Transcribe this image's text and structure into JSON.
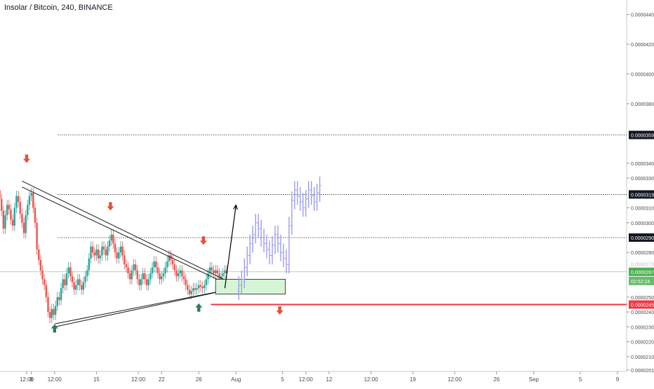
{
  "chart_data": {
    "type": "candlestick",
    "title": "Insolar / Bitcoin, 240, BINANCE",
    "colors": {
      "up": "#26a69a",
      "down": "#ef5350",
      "projection": "#9c9cf0",
      "zone_fill": "#d6f5d6",
      "zone_border": "#1b1b1b",
      "support_line": "#f23645",
      "current_price": "#4caf50",
      "arrow_down": "#e0533d",
      "arrow_up": "#2e7d5b",
      "label_dark": "#131722"
    },
    "ylim": [
      2e-06,
      4.45e-06
    ],
    "y_ticks": [
      "0.0000440",
      "0.0000420",
      "0.0000400",
      "0.0000380",
      "0.0000340",
      "0.0000330",
      "0.0000310",
      "0.0000300",
      "0.0000280",
      "0.0000250",
      "0.0000240",
      "0.0000230",
      "0.0000220",
      "0.0000210",
      "0.0000201"
    ],
    "y_tick_values": [
      4.4e-06,
      4.2e-06,
      4e-06,
      3.8e-06,
      3.4e-06,
      3.3e-06,
      3.1e-06,
      3e-06,
      2.8e-06,
      2.5e-06,
      2.4e-06,
      2.3e-06,
      2.2e-06,
      2.1e-06,
      2.01e-06
    ],
    "x_ticks": [
      "12:00",
      "8",
      "12:00",
      "15",
      "12:00",
      "22",
      "26",
      "Aug",
      "5",
      "12:00",
      "12",
      "12:00",
      "19",
      "12:00",
      "26",
      "Sep",
      "5",
      "9"
    ],
    "x_tick_days": [
      7.5,
      8,
      10.5,
      15,
      19.5,
      22,
      26,
      30,
      35,
      37.5,
      40,
      44.5,
      49,
      53.5,
      58,
      62,
      67,
      71
    ],
    "price_levels": [
      {
        "label": "0.0000359",
        "value": 3.59e-06,
        "style": "dotted"
      },
      {
        "label": "0.0000319",
        "value": 3.19e-06,
        "style": "dotted"
      },
      {
        "label": "0.0000290",
        "value": 2.9e-06,
        "style": "dotted"
      }
    ],
    "current_price": {
      "label": "0.0000267",
      "value": 2.67e-06,
      "countdown": "02:52:24"
    },
    "support": {
      "label": "0.0000245",
      "value": 2.45e-06
    },
    "partial_tick": "0.0000270",
    "candles_days": [
      4.0,
      4.2,
      4.4,
      4.6,
      4.8,
      5.0,
      5.2,
      5.4,
      5.6,
      5.8,
      6.0,
      6.2,
      6.4,
      6.6,
      6.8,
      7.0,
      7.2,
      7.4,
      7.6,
      7.8,
      8.0,
      8.2,
      8.4,
      8.6,
      8.8,
      9.0,
      9.2,
      9.4,
      9.6,
      9.8,
      10.0,
      10.2,
      10.4,
      10.6,
      10.8,
      11.0,
      11.2,
      11.4,
      11.6,
      11.8,
      12.0,
      12.2,
      12.4,
      12.6,
      12.8,
      13.0,
      13.2,
      13.4,
      13.6,
      13.8,
      14.0,
      14.2,
      14.4,
      14.6,
      14.8,
      15.0,
      15.2,
      15.4,
      15.6,
      15.8,
      16.0,
      16.2,
      16.4,
      16.6,
      16.8,
      17.0,
      17.2,
      17.4,
      17.6,
      17.8,
      18.0,
      18.2,
      18.4,
      18.6,
      18.8,
      19.0,
      19.2,
      19.4,
      19.6,
      19.8,
      20.0,
      20.2,
      20.4,
      20.6,
      20.8,
      21.0,
      21.2,
      21.4,
      21.6,
      21.8,
      22.0,
      22.2,
      22.4,
      22.6,
      22.8,
      23.0,
      23.2,
      23.4,
      23.6,
      23.8,
      24.0,
      24.2,
      24.4,
      24.6,
      24.8,
      25.0,
      25.2,
      25.4,
      25.6,
      25.8,
      26.0,
      26.2,
      26.4,
      26.6,
      26.8,
      27.0,
      27.2,
      27.4,
      27.6,
      27.8,
      28.0,
      28.2,
      28.4,
      28.6,
      28.8,
      29.0
    ],
    "candles_close": [
      3.12e-06,
      3.18e-06,
      3.22e-06,
      3.16e-06,
      3.08e-06,
      2.96e-06,
      3.05e-06,
      3.12e-06,
      3.09e-06,
      3.02e-06,
      2.98e-06,
      3.1e-06,
      3.18e-06,
      3.14e-06,
      3.06e-06,
      3e-06,
      2.93e-06,
      3.05e-06,
      3.12e-06,
      3.18e-06,
      3.2e-06,
      3.1e-06,
      3e-06,
      2.82e-06,
      2.75e-06,
      2.68e-06,
      2.62e-06,
      2.58e-06,
      2.5e-06,
      2.4e-06,
      2.36e-06,
      2.42e-06,
      2.38e-06,
      2.44e-06,
      2.5e-06,
      2.48e-06,
      2.56e-06,
      2.62e-06,
      2.58e-06,
      2.66e-06,
      2.7e-06,
      2.64e-06,
      2.6e-06,
      2.55e-06,
      2.58e-06,
      2.62e-06,
      2.58e-06,
      2.55e-06,
      2.6e-06,
      2.64e-06,
      2.68e-06,
      2.76e-06,
      2.84e-06,
      2.8e-06,
      2.78e-06,
      2.82e-06,
      2.76e-06,
      2.78e-06,
      2.84e-06,
      2.82e-06,
      2.78e-06,
      2.84e-06,
      2.88e-06,
      2.92e-06,
      2.86e-06,
      2.8e-06,
      2.76e-06,
      2.8e-06,
      2.84e-06,
      2.78e-06,
      2.72e-06,
      2.7e-06,
      2.66e-06,
      2.62e-06,
      2.68e-06,
      2.72e-06,
      2.68e-06,
      2.62e-06,
      2.58e-06,
      2.62e-06,
      2.66e-06,
      2.62e-06,
      2.58e-06,
      2.62e-06,
      2.66e-06,
      2.7e-06,
      2.74e-06,
      2.7e-06,
      2.66e-06,
      2.62e-06,
      2.64e-06,
      2.66e-06,
      2.7e-06,
      2.74e-06,
      2.78e-06,
      2.75e-06,
      2.72e-06,
      2.68e-06,
      2.64e-06,
      2.66e-06,
      2.68e-06,
      2.64e-06,
      2.62e-06,
      2.58e-06,
      2.55e-06,
      2.52e-06,
      2.54e-06,
      2.56e-06,
      2.55e-06,
      2.56e-06,
      2.58e-06,
      2.57e-06,
      2.56e-06,
      2.58e-06,
      2.62e-06,
      2.66e-06,
      2.7e-06,
      2.68e-06,
      2.66e-06,
      2.68e-06,
      2.66e-06,
      2.62e-06,
      2.64e-06,
      2.66e-06,
      2.68e-06,
      2.66e-06
    ],
    "projection_days": [
      30.3,
      30.6,
      30.9,
      31.2,
      31.5,
      31.8,
      32.1,
      32.4,
      32.7,
      33.0,
      33.3,
      33.6,
      33.9,
      34.2,
      34.5,
      34.8,
      35.1,
      35.4,
      35.7,
      36.0,
      36.3,
      36.6,
      36.9,
      37.2,
      37.5,
      37.8,
      38.1,
      38.4,
      38.7,
      39.0
    ],
    "projection_values": [
      2.58e-06,
      2.62e-06,
      2.7e-06,
      2.78e-06,
      2.86e-06,
      2.92e-06,
      3e-06,
      2.96e-06,
      2.9e-06,
      2.86e-06,
      2.82e-06,
      2.78e-06,
      2.85e-06,
      2.92e-06,
      2.86e-06,
      2.8e-06,
      2.76e-06,
      2.72e-06,
      2.98e-06,
      3.15e-06,
      3.22e-06,
      3.18e-06,
      3.14e-06,
      3.1e-06,
      3.16e-06,
      3.22e-06,
      3.18e-06,
      3.14e-06,
      3.2e-06,
      3.25e-06
    ],
    "triangle_upper": [
      [
        7.0,
        3.28e-06
      ],
      [
        30.0,
        2.58e-06
      ]
    ],
    "triangle_upper_inner": [
      [
        7.0,
        3.24e-06
      ],
      [
        30.0,
        2.56e-06
      ]
    ],
    "triangle_lower": [
      [
        10.5,
        2.32e-06
      ],
      [
        30.0,
        2.56e-06
      ]
    ],
    "triangle_lower_inner": [
      [
        10.5,
        2.3e-06
      ],
      [
        30.0,
        2.56e-06
      ]
    ],
    "zone": {
      "x0": 27.8,
      "x1": 35.3,
      "y_top": 2.62e-06,
      "y_bottom": 2.52e-06
    },
    "arrow_up_projection": {
      "from": [
        28.8,
        2.56e-06
      ],
      "to": [
        30.0,
        3.12e-06
      ]
    },
    "down_markers": [
      [
        7.5,
        3.43e-06
      ],
      [
        16.5,
        3.11e-06
      ],
      [
        26.5,
        2.88e-06
      ],
      [
        34.7,
        2.41e-06
      ]
    ],
    "up_markers": [
      [
        10.5,
        2.29e-06
      ],
      [
        26.0,
        2.43e-06
      ]
    ]
  }
}
